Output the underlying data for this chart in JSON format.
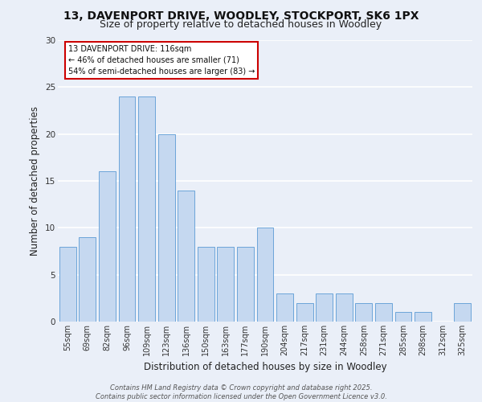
{
  "title1": "13, DAVENPORT DRIVE, WOODLEY, STOCKPORT, SK6 1PX",
  "title2": "Size of property relative to detached houses in Woodley",
  "xlabel": "Distribution of detached houses by size in Woodley",
  "ylabel": "Number of detached properties",
  "categories": [
    "55sqm",
    "69sqm",
    "82sqm",
    "96sqm",
    "109sqm",
    "123sqm",
    "136sqm",
    "150sqm",
    "163sqm",
    "177sqm",
    "190sqm",
    "204sqm",
    "217sqm",
    "231sqm",
    "244sqm",
    "258sqm",
    "271sqm",
    "285sqm",
    "298sqm",
    "312sqm",
    "325sqm"
  ],
  "values": [
    8,
    9,
    16,
    24,
    24,
    20,
    14,
    8,
    8,
    8,
    10,
    3,
    2,
    3,
    3,
    2,
    2,
    1,
    1,
    0,
    2
  ],
  "bar_color": "#c5d8f0",
  "bar_edge_color": "#5b9bd5",
  "annotation_line1": "13 DAVENPORT DRIVE: 116sqm",
  "annotation_line2": "← 46% of detached houses are smaller (71)",
  "annotation_line3": "54% of semi-detached houses are larger (83) →",
  "annotation_box_color": "#ffffff",
  "annotation_box_edge_color": "#cc0000",
  "footer_text": "Contains HM Land Registry data © Crown copyright and database right 2025.\nContains public sector information licensed under the Open Government Licence v3.0.",
  "ylim": [
    0,
    30
  ],
  "yticks": [
    0,
    5,
    10,
    15,
    20,
    25,
    30
  ],
  "background_color": "#eaeff8",
  "plot_bg_color": "#eaeff8",
  "grid_color": "#ffffff",
  "title_fontsize": 10,
  "subtitle_fontsize": 9,
  "tick_fontsize": 7,
  "ylabel_fontsize": 8.5,
  "xlabel_fontsize": 8.5,
  "footer_fontsize": 6
}
